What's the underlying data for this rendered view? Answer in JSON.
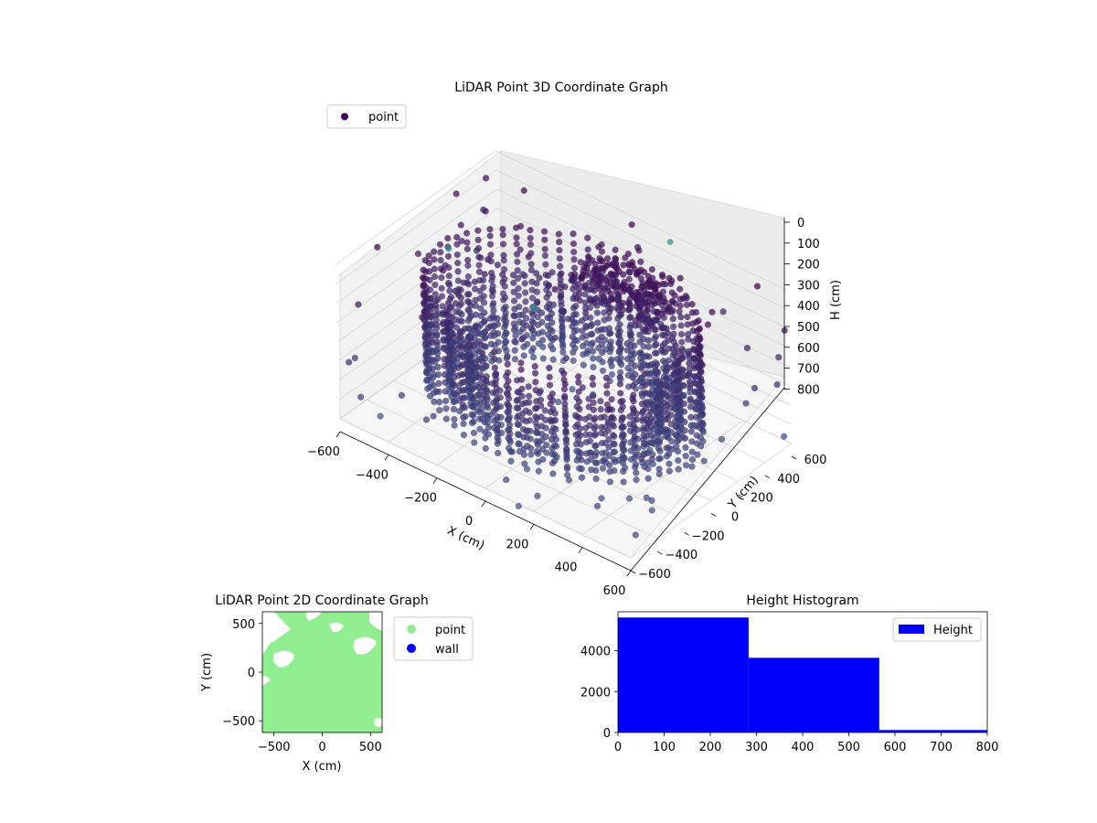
{
  "colors": {
    "hist_fill": "#0000ff",
    "point_2d": "#90ee90",
    "wall_2d": "#0000ff",
    "legend_point_3d": "#440154",
    "pane_grey": "#f2f2f2",
    "grid": "#d0d0d0",
    "cmap": [
      "#440154",
      "#3b528b",
      "#21918c"
    ]
  },
  "chart_data": [
    {
      "type": "scatter",
      "title": "LiDAR Point 3D Coordinate Graph",
      "xlabel": "X (cm)",
      "ylabel": "Y (cm)",
      "zlabel": "H (cm)",
      "x_ticks": [
        "−600",
        "−400",
        "−200",
        "0",
        "200",
        "400",
        "600"
      ],
      "y_ticks": [
        "−600",
        "−400",
        "−200",
        "0",
        "200",
        "400",
        "600"
      ],
      "z_ticks": [
        "0",
        "100",
        "200",
        "300",
        "400",
        "500",
        "600",
        "700",
        "800"
      ],
      "xlim": [
        -600,
        600
      ],
      "ylim": [
        -600,
        600
      ],
      "zlim": [
        0,
        800
      ],
      "z_axis_inverted": true,
      "projection": "3d",
      "colormap": "viridis",
      "legend": [
        "point"
      ],
      "legend_placement": "upper-left",
      "grid": true,
      "series": [
        {
          "name": "point",
          "shapes": [
            {
              "kind": "ring",
              "radius": 500,
              "h": [
                120,
                700
              ]
            },
            {
              "kind": "ring",
              "radius": 420,
              "h": [
                300,
                700
              ]
            },
            {
              "kind": "ring",
              "radius": 350,
              "h": [
                450,
                700
              ]
            },
            {
              "kind": "cluster",
              "center": [
                100,
                300
              ],
              "h": [
                50,
                250
              ]
            },
            {
              "kind": "scatter",
              "spread": 650,
              "h": [
                0,
                800
              ]
            }
          ]
        }
      ]
    },
    {
      "type": "scatter",
      "title": "LiDAR Point 2D Coordinate Graph",
      "xlabel": "X (cm)",
      "ylabel": "Y (cm)",
      "x_ticks": [
        "−500",
        "0",
        "500"
      ],
      "y_ticks": [
        "−500",
        "0",
        "500"
      ],
      "xlim": [
        -620,
        620
      ],
      "ylim": [
        -620,
        620
      ],
      "legend": [
        "point",
        "wall"
      ],
      "legend_placement": "outside-right",
      "grid": false,
      "series": [
        {
          "name": "point",
          "coverage": "dense"
        },
        {
          "name": "wall",
          "coverage": "none visible"
        }
      ]
    },
    {
      "type": "bar",
      "title": "Height Histogram",
      "xlabel": "",
      "ylabel": "",
      "x_ticks": [
        "0",
        "100",
        "200",
        "300",
        "400",
        "500",
        "600",
        "700",
        "800"
      ],
      "y_ticks": [
        "0",
        "2000",
        "4000"
      ],
      "xlim": [
        0,
        800
      ],
      "ylim": [
        0,
        5900
      ],
      "legend": [
        "Height"
      ],
      "legend_placement": "upper-right",
      "grid": false,
      "bins": [
        {
          "x0": 0,
          "x1": 283,
          "count": 5620
        },
        {
          "x0": 283,
          "x1": 566,
          "count": 3650
        },
        {
          "x0": 566,
          "x1": 800,
          "count": 120
        }
      ]
    }
  ]
}
